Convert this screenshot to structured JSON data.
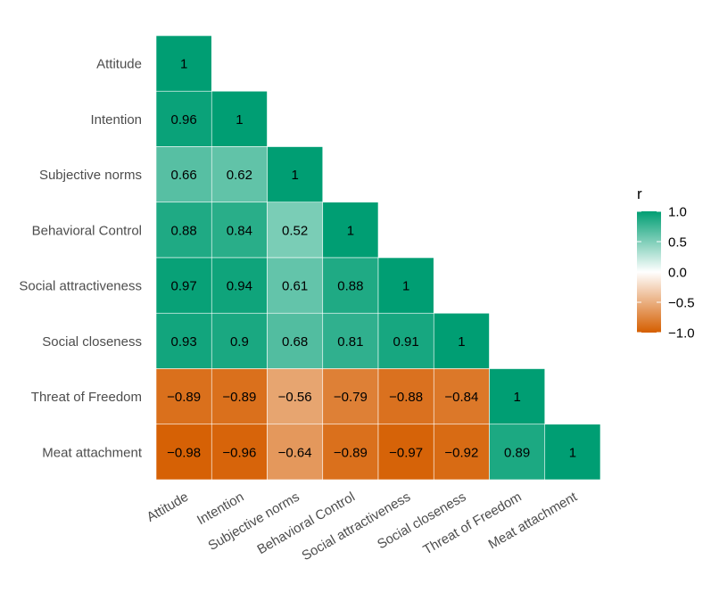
{
  "chart_data": {
    "type": "heatmap",
    "variables": [
      "Attitude",
      "Intention",
      "Subjective norms",
      "Behavioral Control",
      "Social attractiveness",
      "Social closeness",
      "Threat of Freedom",
      "Meat attachment"
    ],
    "matrix": [
      [
        1
      ],
      [
        0.96,
        1
      ],
      [
        0.66,
        0.62,
        1
      ],
      [
        0.88,
        0.84,
        0.52,
        1
      ],
      [
        0.97,
        0.94,
        0.61,
        0.88,
        1
      ],
      [
        0.93,
        0.9,
        0.68,
        0.81,
        0.91,
        1
      ],
      [
        -0.89,
        -0.89,
        -0.56,
        -0.79,
        -0.88,
        -0.84,
        1
      ],
      [
        -0.98,
        -0.96,
        -0.64,
        -0.89,
        -0.97,
        -0.92,
        0.89,
        1
      ]
    ],
    "cell_labels": [
      [
        "1"
      ],
      [
        "0.96",
        "1"
      ],
      [
        "0.66",
        "0.62",
        "1"
      ],
      [
        "0.88",
        "0.84",
        "0.52",
        "1"
      ],
      [
        "0.97",
        "0.94",
        "0.61",
        "0.88",
        "1"
      ],
      [
        "0.93",
        "0.9",
        "0.68",
        "0.81",
        "0.91",
        "1"
      ],
      [
        "−0.89",
        "−0.89",
        "−0.56",
        "−0.79",
        "−0.88",
        "−0.84",
        "1"
      ],
      [
        "−0.98",
        "−0.96",
        "−0.64",
        "−0.89",
        "−0.97",
        "−0.92",
        "0.89",
        "1"
      ]
    ],
    "legend": {
      "title": "r",
      "placement": "right",
      "ticks": [
        1.0,
        0.5,
        0.0,
        -0.5,
        -1.0
      ],
      "tick_labels": [
        "1.0",
        "0.5",
        "0.0",
        "−0.5",
        "−1.0"
      ],
      "limits": [
        -1,
        1
      ]
    },
    "colors": {
      "high": "#009E73",
      "mid": "#FFFFFF",
      "low": "#D55E00"
    },
    "xlabel": "",
    "ylabel": "",
    "grid": false
  }
}
